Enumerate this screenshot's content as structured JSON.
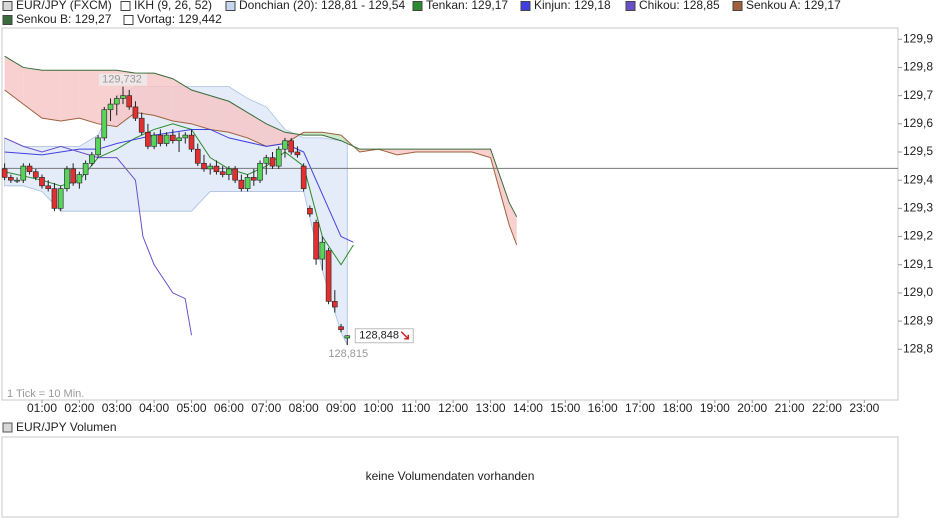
{
  "chart_data": {
    "type": "candlestick",
    "legend": [
      {
        "label": "EUR/JPY (FXCM)",
        "color": "#d8d8d8"
      },
      {
        "label": "IKH (9, 26, 52)",
        "color": "#ffffff"
      },
      {
        "label": "Donchian (20): 128,81 - 129,54",
        "color": "#c6d8f0"
      },
      {
        "label": "Tenkan: 129,17",
        "color": "#2b8a2b"
      },
      {
        "label": "Kinjun: 129,18",
        "color": "#4040e0"
      },
      {
        "label": "Chikou: 128,85",
        "color": "#6a4fc9"
      },
      {
        "label": "Senkou A: 129,17",
        "color": "#a0603c"
      },
      {
        "label": "Senkou B: 129,27",
        "color": "#3a6b3a"
      },
      {
        "label": "Vortag: 129,442",
        "color": "#ffffff"
      }
    ],
    "xlim": [
      -0.07,
      23.9
    ],
    "xticks": [
      {
        "value": 1,
        "label": "01:00"
      },
      {
        "value": 2,
        "label": "02:00"
      },
      {
        "value": 3,
        "label": "03:00"
      },
      {
        "value": 4,
        "label": "04:00"
      },
      {
        "value": 5,
        "label": "05:00"
      },
      {
        "value": 6,
        "label": "06:00"
      },
      {
        "value": 7,
        "label": "07:00"
      },
      {
        "value": 8,
        "label": "08:00"
      },
      {
        "value": 9,
        "label": "09:00"
      },
      {
        "value": 10,
        "label": "10:00"
      },
      {
        "value": 11,
        "label": "11:00"
      },
      {
        "value": 12,
        "label": "12:00"
      },
      {
        "value": 13,
        "label": "13:00"
      },
      {
        "value": 14,
        "label": "14:00"
      },
      {
        "value": 15,
        "label": "15:00"
      },
      {
        "value": 16,
        "label": "16:00"
      },
      {
        "value": 17,
        "label": "17:00"
      },
      {
        "value": 18,
        "label": "18:00"
      },
      {
        "value": 19,
        "label": "19:00"
      },
      {
        "value": 20,
        "label": "20:00"
      },
      {
        "value": 21,
        "label": "21:00"
      },
      {
        "value": 22,
        "label": "22:00"
      },
      {
        "value": 23,
        "label": "23:00"
      }
    ],
    "ylim": [
      128.62,
      129.94
    ],
    "yticks": [
      {
        "value": 129.9,
        "label": "129,9"
      },
      {
        "value": 129.8,
        "label": "129,8"
      },
      {
        "value": 129.7,
        "label": "129,7"
      },
      {
        "value": 129.6,
        "label": "129,6"
      },
      {
        "value": 129.5,
        "label": "129,5"
      },
      {
        "value": 129.4,
        "label": "129,4"
      },
      {
        "value": 129.3,
        "label": "129,3"
      },
      {
        "value": 129.2,
        "label": "129,2"
      },
      {
        "value": 129.1,
        "label": "129,1"
      },
      {
        "value": 129.0,
        "label": "129,0"
      },
      {
        "value": 128.9,
        "label": "128,9"
      },
      {
        "value": 128.8,
        "label": "128,8"
      }
    ],
    "up_color": "#5ad35a",
    "down_color": "#e03030",
    "candles": {
      "x": [
        0,
        0.1667,
        0.3333,
        0.5,
        0.6667,
        0.8333,
        1,
        1.1667,
        1.3333,
        1.5,
        1.6667,
        1.8333,
        2,
        2.1667,
        2.3333,
        2.5,
        2.6667,
        2.8333,
        3,
        3.1667,
        3.3333,
        3.5,
        3.6667,
        3.8333,
        4,
        4.1667,
        4.3333,
        4.5,
        4.6667,
        4.8333,
        5,
        5.1667,
        5.3333,
        5.5,
        5.6667,
        5.8333,
        6,
        6.1667,
        6.3333,
        6.5,
        6.6667,
        6.8333,
        7,
        7.1667,
        7.3333,
        7.5,
        7.6667,
        7.8333,
        8,
        8.1667,
        8.3333,
        8.5,
        8.6667,
        8.8333,
        9,
        9.1667
      ],
      "open": [
        129.44,
        129.41,
        129.4,
        129.4,
        129.45,
        129.43,
        129.41,
        129.38,
        129.37,
        129.3,
        129.37,
        129.44,
        129.39,
        129.42,
        129.46,
        129.49,
        129.55,
        129.65,
        129.67,
        129.69,
        129.7,
        129.66,
        129.62,
        129.57,
        129.52,
        129.56,
        129.53,
        129.56,
        129.54,
        129.55,
        129.56,
        129.51,
        129.46,
        129.44,
        129.45,
        129.43,
        129.42,
        129.44,
        129.4,
        129.37,
        129.41,
        129.4,
        129.46,
        129.48,
        129.45,
        129.51,
        129.54,
        129.5,
        129.45,
        129.3,
        129.25,
        129.12,
        129.15,
        128.97,
        128.88,
        128.84
      ],
      "high": [
        129.46,
        129.42,
        129.41,
        129.46,
        129.46,
        129.44,
        129.42,
        129.4,
        129.39,
        129.38,
        129.45,
        129.46,
        129.43,
        129.47,
        129.5,
        129.56,
        129.66,
        129.69,
        129.7,
        129.732,
        129.72,
        129.68,
        129.64,
        129.6,
        129.57,
        129.58,
        129.57,
        129.58,
        129.57,
        129.57,
        129.58,
        129.53,
        129.49,
        129.46,
        129.47,
        129.45,
        129.45,
        129.45,
        129.42,
        129.42,
        129.44,
        129.47,
        129.49,
        129.5,
        129.52,
        129.55,
        129.55,
        129.52,
        129.46,
        129.31,
        129.26,
        129.2,
        129.16,
        129.01,
        128.89,
        128.85
      ],
      "low": [
        129.4,
        129.39,
        129.39,
        129.39,
        129.42,
        129.4,
        129.37,
        129.36,
        129.29,
        129.29,
        129.36,
        129.38,
        129.37,
        129.4,
        129.45,
        129.48,
        129.54,
        129.61,
        129.63,
        129.67,
        129.65,
        129.61,
        129.56,
        129.51,
        129.51,
        129.52,
        129.52,
        129.53,
        129.5,
        129.53,
        129.5,
        129.45,
        129.43,
        129.42,
        129.42,
        129.41,
        129.4,
        129.39,
        129.36,
        129.36,
        129.38,
        129.39,
        129.42,
        129.44,
        129.44,
        129.48,
        129.49,
        129.48,
        129.36,
        129.27,
        129.1,
        129.08,
        128.96,
        128.93,
        128.86,
        128.815
      ],
      "close": [
        129.41,
        129.4,
        129.4,
        129.45,
        129.43,
        129.41,
        129.38,
        129.37,
        129.3,
        129.37,
        129.44,
        129.39,
        129.42,
        129.46,
        129.49,
        129.55,
        129.65,
        129.67,
        129.69,
        129.7,
        129.66,
        129.62,
        129.57,
        129.52,
        129.56,
        129.53,
        129.56,
        129.54,
        129.55,
        129.56,
        129.51,
        129.46,
        129.44,
        129.45,
        129.43,
        129.42,
        129.44,
        129.4,
        129.37,
        129.41,
        129.4,
        129.46,
        129.48,
        129.45,
        129.51,
        129.54,
        129.5,
        129.49,
        129.37,
        129.28,
        129.12,
        129.18,
        128.97,
        128.95,
        128.87,
        128.848
      ]
    },
    "cloud": {
      "x": [
        0,
        0.5,
        1,
        1.5,
        2,
        2.5,
        3,
        3.5,
        4,
        4.5,
        5,
        5.5,
        6,
        6.5,
        7,
        7.5,
        8,
        8.5,
        9,
        9.5,
        10,
        10.5,
        11,
        11.5,
        12,
        12.5,
        13,
        13.5,
        13.7
      ],
      "senkou_a": {
        "color": "#a0603c",
        "values": [
          129.72,
          129.67,
          129.62,
          129.61,
          129.62,
          129.6,
          129.59,
          129.64,
          129.63,
          129.61,
          129.6,
          129.58,
          129.57,
          129.55,
          129.52,
          129.53,
          129.57,
          129.57,
          129.56,
          129.5,
          129.51,
          129.49,
          129.5,
          129.5,
          129.5,
          129.5,
          129.48,
          129.24,
          129.17
        ]
      },
      "senkou_b": {
        "color": "#3a6b3a",
        "values": [
          129.84,
          129.8,
          129.79,
          129.79,
          129.79,
          129.79,
          129.79,
          129.78,
          129.78,
          129.76,
          129.72,
          129.7,
          129.68,
          129.64,
          129.6,
          129.57,
          129.56,
          129.56,
          129.54,
          129.51,
          129.51,
          129.51,
          129.51,
          129.51,
          129.51,
          129.51,
          129.51,
          129.32,
          129.27
        ]
      },
      "up_fill": "#bfe6bf",
      "down_fill": "#f6c4c4"
    },
    "donchian": {
      "color": "#dbe6f7",
      "edge": "#a9bfe0",
      "x": [
        0,
        0.5,
        1,
        1.5,
        2,
        2.5,
        3,
        3.5,
        4,
        4.5,
        5,
        5.5,
        6,
        6.5,
        7,
        7.5,
        8,
        8.5,
        9,
        9.1667
      ],
      "upper": [
        129.55,
        129.52,
        129.52,
        129.52,
        129.52,
        129.56,
        129.7,
        129.732,
        129.732,
        129.732,
        129.732,
        129.732,
        129.732,
        129.69,
        129.66,
        129.58,
        129.55,
        129.55,
        129.54,
        129.54
      ],
      "lower": [
        129.38,
        129.38,
        129.36,
        129.29,
        129.29,
        129.29,
        129.29,
        129.29,
        129.29,
        129.29,
        129.29,
        129.36,
        129.36,
        129.36,
        129.36,
        129.36,
        129.36,
        129.08,
        128.86,
        128.815
      ]
    },
    "lines": [
      {
        "color": "#2b8a2b",
        "x": [
          0,
          1,
          1.5,
          2,
          2.5,
          3,
          3.5,
          4,
          4.5,
          5,
          5.5,
          6,
          6.5,
          7,
          7.5,
          8,
          8.5,
          9,
          9.33
        ],
        "values": [
          129.43,
          129.4,
          129.38,
          129.4,
          129.48,
          129.51,
          129.55,
          129.58,
          129.6,
          129.58,
          129.48,
          129.44,
          129.42,
          129.45,
          129.5,
          129.45,
          129.2,
          129.1,
          129.17
        ]
      },
      {
        "color": "#4040e0",
        "x": [
          0,
          1,
          2,
          2.5,
          3,
          4,
          5,
          5.5,
          6,
          7,
          7.5,
          8,
          8.5,
          9,
          9.33
        ],
        "values": [
          129.5,
          129.49,
          129.51,
          129.51,
          129.53,
          129.56,
          129.58,
          129.58,
          129.55,
          129.52,
          129.53,
          129.5,
          129.35,
          129.2,
          129.18
        ]
      },
      {
        "color": "#6a4fc9",
        "x": [
          0,
          0.5,
          1,
          1.5,
          2,
          2.5,
          3,
          3.5,
          3.7,
          4,
          4.5,
          4.83,
          5
        ],
        "values": [
          129.55,
          129.52,
          129.5,
          129.52,
          129.5,
          129.48,
          129.48,
          129.4,
          129.2,
          129.1,
          129.0,
          128.98,
          128.85
        ]
      }
    ],
    "previous_close": 129.442,
    "high_label": {
      "value": 129.732,
      "label": "129,732"
    },
    "low_label": {
      "value": 128.815,
      "label": "128,815"
    },
    "last_label": {
      "value": 128.848,
      "label": "128,848"
    },
    "tick_note": "1 Tick = 10 Min.",
    "volume": {
      "title": "EUR/JPY Volumen",
      "message": "keine Volumendaten vorhanden"
    }
  }
}
